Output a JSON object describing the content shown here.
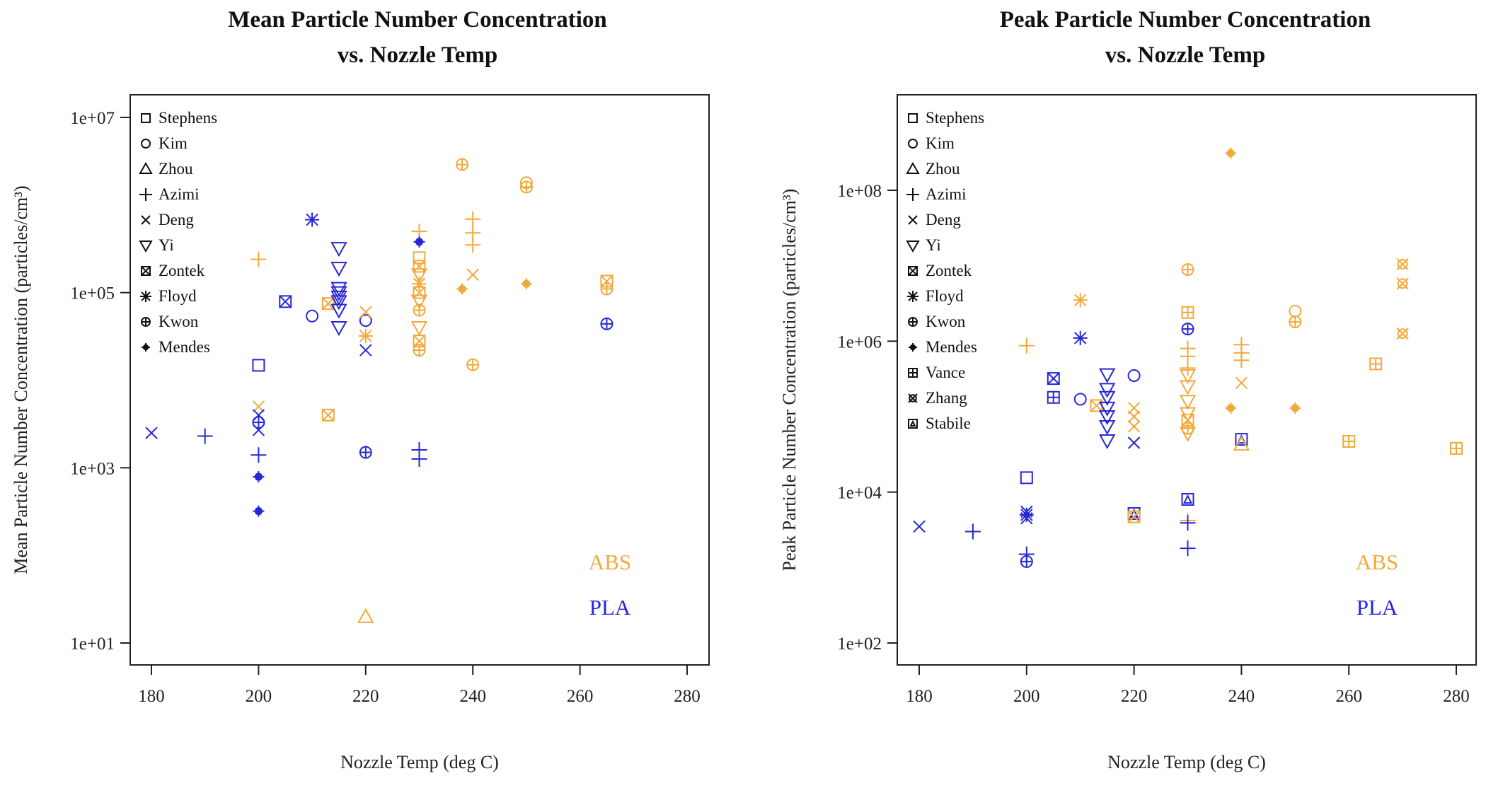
{
  "colors": {
    "ABS": "#F2A93B",
    "PLA": "#2626D9",
    "axis": "#222222"
  },
  "chart_data": [
    {
      "type": "scatter",
      "title": [
        "Mean Particle Number Concentration",
        "vs. Nozzle Temp"
      ],
      "xlabel": "Nozzle Temp (deg C)",
      "ylabel": "Mean Particle Number Concentration (particles/cm³)",
      "yscale": "log",
      "xlim": [
        175,
        282
      ],
      "ylim": [
        10,
        10000000
      ],
      "xticks": [
        180,
        200,
        220,
        240,
        260,
        280
      ],
      "xtick_labels": [
        "180",
        "200",
        "220",
        "240",
        "260",
        "280"
      ],
      "yticks": [
        10,
        1000,
        100000,
        10000000
      ],
      "ytick_labels": [
        "1e+01",
        "1e+03",
        "1e+05",
        "1e+07"
      ],
      "legend": [
        "Stephens",
        "Kim",
        "Zhou",
        "Azimi",
        "Deng",
        "Yi",
        "Zontek",
        "Floyd",
        "Kwon",
        "Mendes"
      ],
      "legend_placement": "top-left",
      "material_labels": [
        "ABS",
        "PLA"
      ],
      "points": [
        [
          200,
          14800.0,
          "Stephens",
          "PLA"
        ],
        [
          200,
          240000.0,
          "Azimi",
          "ABS"
        ],
        [
          205,
          79000.0,
          "Zontek",
          "PLA"
        ],
        [
          210,
          680000.0,
          "Floyd",
          "PLA"
        ],
        [
          210,
          54000.0,
          "Kim",
          "PLA"
        ],
        [
          213,
          75000.0,
          "Zontek",
          "ABS"
        ],
        [
          213,
          4000.0,
          "Zontek",
          "ABS"
        ],
        [
          215,
          320000.0,
          "Yi",
          "PLA"
        ],
        [
          215,
          190000.0,
          "Yi",
          "PLA"
        ],
        [
          215,
          112000.0,
          "Yi",
          "PLA"
        ],
        [
          215,
          100000.0,
          "Yi",
          "PLA"
        ],
        [
          215,
          89000.0,
          "Yi",
          "PLA"
        ],
        [
          215,
          79000.0,
          "Yi",
          "PLA"
        ],
        [
          215,
          63000.0,
          "Yi",
          "PLA"
        ],
        [
          215,
          40000.0,
          "Yi",
          "PLA"
        ],
        [
          220,
          48000.0,
          "Kim",
          "PLA"
        ],
        [
          220,
          60000.0,
          "Deng",
          "ABS"
        ],
        [
          220,
          22000.0,
          "Deng",
          "PLA"
        ],
        [
          220,
          32000.0,
          "Floyd",
          "ABS"
        ],
        [
          220,
          1500.0,
          "Kwon",
          "PLA"
        ],
        [
          220,
          20,
          "Zhou",
          "ABS"
        ],
        [
          180,
          2500.0,
          "Deng",
          "PLA"
        ],
        [
          190,
          2300.0,
          "Azimi",
          "PLA"
        ],
        [
          200,
          5000.0,
          "Deng",
          "ABS"
        ],
        [
          200,
          4000.0,
          "Deng",
          "PLA"
        ],
        [
          200,
          3300.0,
          "Kwon",
          "PLA"
        ],
        [
          200,
          2700.0,
          "Deng",
          "PLA"
        ],
        [
          200,
          1400.0,
          "Azimi",
          "PLA"
        ],
        [
          200,
          790,
          "Mendes",
          "PLA"
        ],
        [
          200,
          320,
          "Mendes",
          "PLA"
        ],
        [
          230,
          500000.0,
          "Azimi",
          "ABS"
        ],
        [
          230,
          380000.0,
          "Mendes",
          "PLA"
        ],
        [
          230,
          250000.0,
          "Stephens",
          "ABS"
        ],
        [
          230,
          200000.0,
          "Zontek",
          "ABS"
        ],
        [
          230,
          160000.0,
          "Yi",
          "ABS"
        ],
        [
          230,
          126000.0,
          "Floyd",
          "ABS"
        ],
        [
          230,
          100000.0,
          "Zontek",
          "ABS"
        ],
        [
          230,
          80000.0,
          "Yi",
          "ABS"
        ],
        [
          230,
          63000.0,
          "Kwon",
          "ABS"
        ],
        [
          230,
          40000.0,
          "Yi",
          "ABS"
        ],
        [
          230,
          28000.0,
          "Zontek",
          "ABS"
        ],
        [
          230,
          22000.0,
          "Kwon",
          "ABS"
        ],
        [
          230,
          1600.0,
          "Azimi",
          "PLA"
        ],
        [
          230,
          1260.0,
          "Azimi",
          "PLA"
        ],
        [
          238,
          2900000.0,
          "Kwon",
          "ABS"
        ],
        [
          238,
          110000.0,
          "Mendes",
          "ABS"
        ],
        [
          240,
          690000.0,
          "Azimi",
          "ABS"
        ],
        [
          240,
          480000.0,
          "Azimi",
          "ABS"
        ],
        [
          240,
          350000.0,
          "Azimi",
          "ABS"
        ],
        [
          240,
          160000.0,
          "Deng",
          "ABS"
        ],
        [
          240,
          15000.0,
          "Kwon",
          "ABS"
        ],
        [
          250,
          1800000.0,
          "Kim",
          "ABS"
        ],
        [
          250,
          1600000.0,
          "Kwon",
          "ABS"
        ],
        [
          250,
          126000.0,
          "Mendes",
          "ABS"
        ],
        [
          265,
          135000.0,
          "Zontek",
          "ABS"
        ],
        [
          265,
          110000.0,
          "Kwon",
          "ABS"
        ],
        [
          265,
          44000.0,
          "Kwon",
          "PLA"
        ]
      ]
    },
    {
      "type": "scatter",
      "title": [
        "Peak Particle Number Concentration",
        "vs. Nozzle Temp"
      ],
      "xlabel": "Nozzle Temp (deg C)",
      "ylabel": "Peak Particle Number Concentration (particles/cm³)",
      "yscale": "log",
      "xlim": [
        175,
        282
      ],
      "ylim": [
        100,
        1000000000
      ],
      "xticks": [
        180,
        200,
        220,
        240,
        260,
        280
      ],
      "xtick_labels": [
        "180",
        "200",
        "220",
        "240",
        "260",
        "280"
      ],
      "yticks": [
        100,
        10000,
        1000000,
        100000000
      ],
      "ytick_labels": [
        "1e+02",
        "1e+04",
        "1e+06",
        "1e+08"
      ],
      "legend": [
        "Stephens",
        "Kim",
        "Zhou",
        "Azimi",
        "Deng",
        "Yi",
        "Zontek",
        "Floyd",
        "Kwon",
        "Mendes",
        "Vance",
        "Zhang",
        "Stabile"
      ],
      "legend_placement": "top-left",
      "material_labels": [
        "ABS",
        "PLA"
      ],
      "points": [
        [
          238,
          310000000.0,
          "Mendes",
          "ABS"
        ],
        [
          230,
          8900000.0,
          "Kwon",
          "ABS"
        ],
        [
          210,
          3500000.0,
          "Floyd",
          "ABS"
        ],
        [
          210,
          1100000.0,
          "Floyd",
          "PLA"
        ],
        [
          200,
          870000.0,
          "Azimi",
          "ABS"
        ],
        [
          230,
          2400000.0,
          "Vance",
          "ABS"
        ],
        [
          230,
          1450000.0,
          "Kwon",
          "PLA"
        ],
        [
          230,
          800000.0,
          "Azimi",
          "ABS"
        ],
        [
          230,
          630000.0,
          "Azimi",
          "ABS"
        ],
        [
          230,
          440000.0,
          "Azimi",
          "ABS"
        ],
        [
          230,
          350000.0,
          "Yi",
          "ABS"
        ],
        [
          230,
          250000.0,
          "Yi",
          "ABS"
        ],
        [
          230,
          160000.0,
          "Yi",
          "ABS"
        ],
        [
          230,
          110000.0,
          "Yi",
          "ABS"
        ],
        [
          230,
          90000.0,
          "Zontek",
          "ABS"
        ],
        [
          230,
          70000.0,
          "Kwon",
          "ABS"
        ],
        [
          230,
          60000.0,
          "Yi",
          "ABS"
        ],
        [
          250,
          2500000.0,
          "Kim",
          "ABS"
        ],
        [
          250,
          1800000.0,
          "Kwon",
          "ABS"
        ],
        [
          270,
          10500000.0,
          "Zhang",
          "ABS"
        ],
        [
          270,
          5800000.0,
          "Zhang",
          "ABS"
        ],
        [
          270,
          1260000.0,
          "Zhang",
          "ABS"
        ],
        [
          265,
          500000.0,
          "Vance",
          "ABS"
        ],
        [
          260,
          47000.0,
          "Vance",
          "ABS"
        ],
        [
          280,
          38000.0,
          "Vance",
          "ABS"
        ],
        [
          240,
          900000.0,
          "Azimi",
          "ABS"
        ],
        [
          240,
          700000.0,
          "Azimi",
          "ABS"
        ],
        [
          240,
          560000.0,
          "Azimi",
          "ABS"
        ],
        [
          240,
          280000.0,
          "Deng",
          "ABS"
        ],
        [
          238,
          130000.0,
          "Mendes",
          "ABS"
        ],
        [
          250,
          130000.0,
          "Mendes",
          "ABS"
        ],
        [
          205,
          320000.0,
          "Zontek",
          "PLA"
        ],
        [
          205,
          180000.0,
          "Vance",
          "PLA"
        ],
        [
          210,
          170000.0,
          "Kim",
          "PLA"
        ],
        [
          213,
          140000.0,
          "Zontek",
          "ABS"
        ],
        [
          215,
          360000.0,
          "Yi",
          "PLA"
        ],
        [
          215,
          230000.0,
          "Yi",
          "PLA"
        ],
        [
          215,
          180000.0,
          "Yi",
          "PLA"
        ],
        [
          215,
          130000.0,
          "Yi",
          "PLA"
        ],
        [
          215,
          100000.0,
          "Yi",
          "PLA"
        ],
        [
          215,
          74000.0,
          "Yi",
          "PLA"
        ],
        [
          215,
          48000.0,
          "Yi",
          "PLA"
        ],
        [
          220,
          350000.0,
          "Kim",
          "PLA"
        ],
        [
          220,
          130000.0,
          "Deng",
          "ABS"
        ],
        [
          220,
          100000.0,
          "Deng",
          "ABS"
        ],
        [
          220,
          74000.0,
          "Deng",
          "ABS"
        ],
        [
          220,
          45000.0,
          "Deng",
          "PLA"
        ],
        [
          240,
          50000.0,
          "Stabile",
          "PLA"
        ],
        [
          240,
          43000.0,
          "Zhou",
          "ABS"
        ],
        [
          200,
          15500.0,
          "Stephens",
          "PLA"
        ],
        [
          200,
          5500.0,
          "Deng",
          "PLA"
        ],
        [
          200,
          5000.0,
          "Floyd",
          "PLA"
        ],
        [
          200,
          4500.0,
          "Deng",
          "PLA"
        ],
        [
          200,
          1500.0,
          "Azimi",
          "PLA"
        ],
        [
          200,
          1200.0,
          "Kwon",
          "PLA"
        ],
        [
          220,
          5200.0,
          "Stabile",
          "PLA"
        ],
        [
          220,
          4700.0,
          "Zontek",
          "ABS"
        ],
        [
          230,
          8000.0,
          "Stabile",
          "PLA"
        ],
        [
          230,
          4200.0,
          "Azimi",
          "ABS"
        ],
        [
          230,
          3900.0,
          "Azimi",
          "PLA"
        ],
        [
          230,
          1800.0,
          "Azimi",
          "PLA"
        ],
        [
          180,
          3500.0,
          "Deng",
          "PLA"
        ],
        [
          190,
          3000.0,
          "Azimi",
          "PLA"
        ]
      ]
    }
  ]
}
